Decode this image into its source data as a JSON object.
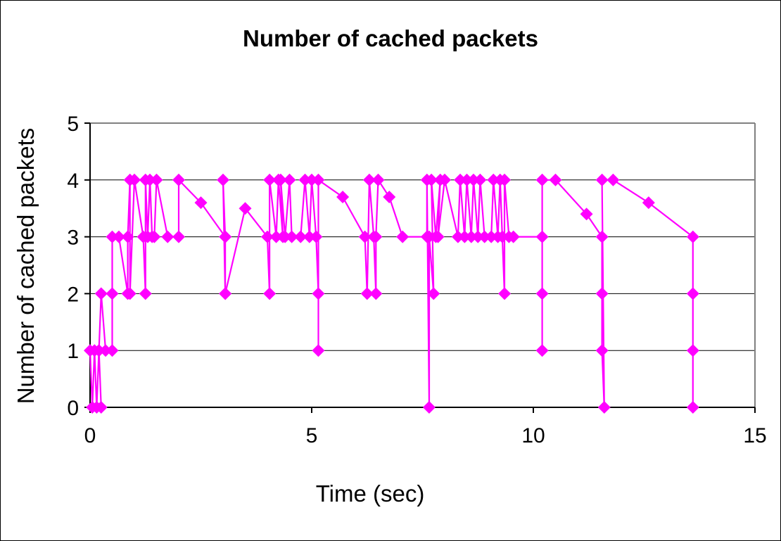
{
  "chart_data": {
    "type": "line",
    "title": "Number of cached packets",
    "xlabel": "Time (sec)",
    "ylabel": "Number of cached packets",
    "xlim": [
      0,
      15
    ],
    "ylim": [
      0,
      5
    ],
    "x_ticks": [
      0,
      5,
      10,
      15
    ],
    "y_ticks": [
      0,
      1,
      2,
      3,
      4,
      5
    ],
    "grid": "horizontal",
    "legend": "none",
    "colors": {
      "series": "#ff00ff",
      "grid": "#000000",
      "plot_border": "#808080"
    },
    "series": [
      {
        "points": [
          [
            0.0,
            1
          ],
          [
            0.05,
            0
          ],
          [
            0.1,
            1
          ],
          [
            0.15,
            0
          ],
          [
            0.2,
            1
          ],
          [
            0.25,
            0
          ],
          [
            0.2,
            1
          ],
          [
            0.25,
            2
          ],
          [
            0.35,
            1
          ],
          [
            0.5,
            1
          ],
          [
            0.5,
            2
          ],
          [
            0.5,
            3
          ],
          [
            0.65,
            3
          ],
          [
            0.85,
            2
          ],
          [
            0.85,
            3
          ],
          [
            0.9,
            4
          ],
          [
            0.9,
            2
          ],
          [
            1.0,
            4
          ],
          [
            1.2,
            3
          ],
          [
            1.25,
            2
          ],
          [
            1.25,
            4
          ],
          [
            1.3,
            3
          ],
          [
            1.35,
            4
          ],
          [
            1.4,
            3
          ],
          [
            1.45,
            3
          ],
          [
            1.5,
            4
          ],
          [
            1.75,
            3
          ],
          [
            2.0,
            3
          ],
          [
            2.0,
            4
          ],
          [
            2.5,
            3.6
          ],
          [
            3.05,
            3
          ],
          [
            3.05,
            2
          ],
          [
            3.0,
            4
          ],
          [
            3.05,
            3
          ],
          [
            3.05,
            2
          ],
          [
            3.5,
            3.5
          ],
          [
            4.0,
            3
          ],
          [
            4.05,
            2
          ],
          [
            4.05,
            4
          ],
          [
            4.2,
            3
          ],
          [
            4.25,
            4
          ],
          [
            4.35,
            3
          ],
          [
            4.3,
            4
          ],
          [
            4.4,
            3
          ],
          [
            4.5,
            4
          ],
          [
            4.55,
            3
          ],
          [
            4.75,
            3
          ],
          [
            4.85,
            4
          ],
          [
            4.95,
            3
          ],
          [
            5.0,
            4
          ],
          [
            5.1,
            3
          ],
          [
            5.15,
            2
          ],
          [
            5.15,
            1
          ],
          [
            5.15,
            4
          ],
          [
            5.7,
            3.7
          ],
          [
            6.2,
            3
          ],
          [
            6.25,
            2
          ],
          [
            6.3,
            4
          ],
          [
            6.4,
            3
          ],
          [
            6.45,
            2
          ],
          [
            6.45,
            3
          ],
          [
            6.5,
            4
          ],
          [
            6.75,
            3.7
          ],
          [
            7.05,
            3
          ],
          [
            7.6,
            3
          ],
          [
            7.6,
            4
          ],
          [
            7.65,
            0
          ],
          [
            7.65,
            3
          ],
          [
            7.75,
            2
          ],
          [
            7.7,
            4
          ],
          [
            7.8,
            3
          ],
          [
            7.9,
            4
          ],
          [
            7.85,
            3
          ],
          [
            8.0,
            4
          ],
          [
            8.3,
            3
          ],
          [
            8.35,
            4
          ],
          [
            8.45,
            3
          ],
          [
            8.5,
            4
          ],
          [
            8.6,
            3
          ],
          [
            8.65,
            4
          ],
          [
            8.75,
            3
          ],
          [
            8.8,
            4
          ],
          [
            8.9,
            3
          ],
          [
            9.05,
            3
          ],
          [
            9.1,
            4
          ],
          [
            9.2,
            3
          ],
          [
            9.25,
            4
          ],
          [
            9.3,
            3
          ],
          [
            9.35,
            2
          ],
          [
            9.35,
            4
          ],
          [
            9.45,
            3
          ],
          [
            9.55,
            3
          ],
          [
            10.2,
            3
          ],
          [
            10.2,
            2
          ],
          [
            10.2,
            1
          ],
          [
            10.2,
            4
          ],
          [
            10.5,
            4
          ],
          [
            11.2,
            3.4
          ],
          [
            11.55,
            3
          ],
          [
            11.55,
            2
          ],
          [
            11.55,
            1
          ],
          [
            11.6,
            0
          ],
          [
            11.55,
            4
          ],
          [
            11.8,
            4
          ],
          [
            12.6,
            3.6
          ],
          [
            13.6,
            3
          ],
          [
            13.6,
            2
          ],
          [
            13.6,
            1
          ],
          [
            13.6,
            0
          ]
        ]
      }
    ]
  }
}
